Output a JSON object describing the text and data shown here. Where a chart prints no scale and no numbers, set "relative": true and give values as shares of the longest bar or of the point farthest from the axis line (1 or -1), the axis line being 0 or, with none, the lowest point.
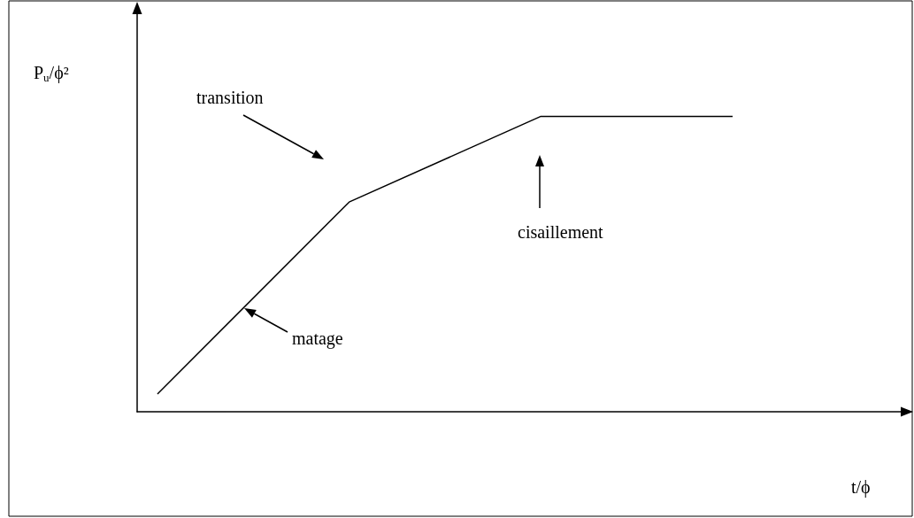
{
  "chart_data": {
    "type": "line",
    "relative": true,
    "xlabel": "t/ϕ",
    "ylabel": "P$_{u}$/ϕ²",
    "categories": [
      null,
      null,
      null,
      null
    ],
    "series": [
      {
        "color": "#000000",
        "values": [
          0.06,
          0.71,
          1,
          1
        ]
      }
    ],
    "annotations": [
      "transition",
      "cisaillement",
      "matage"
    ],
    "marker": "none",
    "grid": false
  }
}
